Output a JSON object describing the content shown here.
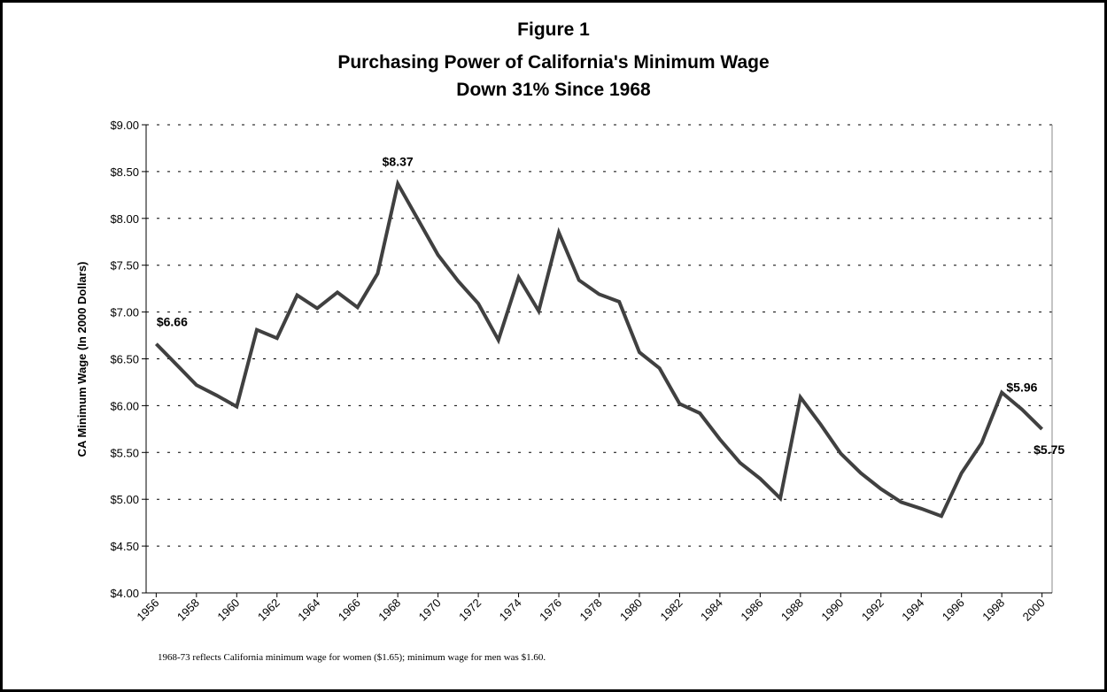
{
  "chart_data": {
    "type": "line",
    "titles": [
      "Figure 1",
      "Purchasing Power of California's Minimum Wage",
      "Down 31% Since 1968"
    ],
    "y_label": "CA Minimum Wage (In 2000 Dollars)",
    "note": "1968-73 reflects California minimum wage for women ($1.65); minimum wage for men was $1.60.",
    "x": [
      1956,
      1957,
      1958,
      1959,
      1960,
      1961,
      1962,
      1963,
      1964,
      1965,
      1966,
      1967,
      1968,
      1969,
      1970,
      1971,
      1972,
      1973,
      1974,
      1975,
      1976,
      1977,
      1978,
      1979,
      1980,
      1981,
      1982,
      1983,
      1984,
      1985,
      1986,
      1987,
      1988,
      1989,
      1990,
      1991,
      1992,
      1993,
      1994,
      1995,
      1996,
      1997,
      1998,
      1999,
      2000
    ],
    "values": [
      6.66,
      6.44,
      6.22,
      6.11,
      5.99,
      6.81,
      6.72,
      7.18,
      7.04,
      7.21,
      7.05,
      7.41,
      8.37,
      7.99,
      7.61,
      7.33,
      7.09,
      6.7,
      7.37,
      7.01,
      7.85,
      7.34,
      7.19,
      7.11,
      6.57,
      6.4,
      6.02,
      5.92,
      5.64,
      5.39,
      5.22,
      5.01,
      6.09,
      5.8,
      5.49,
      5.28,
      5.11,
      4.97,
      4.9,
      4.82,
      5.28,
      5.6,
      6.14,
      5.96,
      5.75
    ],
    "value_labels": [
      "$6.66",
      null,
      null,
      null,
      null,
      null,
      null,
      null,
      null,
      null,
      null,
      null,
      "$8.37",
      null,
      null,
      null,
      null,
      null,
      null,
      null,
      null,
      null,
      null,
      null,
      null,
      null,
      null,
      null,
      null,
      null,
      null,
      null,
      null,
      null,
      null,
      null,
      null,
      null,
      null,
      null,
      null,
      null,
      null,
      "$5.96",
      "$5.75"
    ],
    "color": "#404040",
    "xlim": [
      1955.5,
      2000.5
    ],
    "xticks": [
      1956,
      1958,
      1960,
      1962,
      1964,
      1966,
      1968,
      1970,
      1972,
      1974,
      1976,
      1978,
      1980,
      1982,
      1984,
      1986,
      1988,
      1990,
      1992,
      1994,
      1996,
      1998,
      2000
    ],
    "ylim": [
      4,
      9
    ],
    "yticks": [
      {
        "value": 4,
        "label": "$4.00"
      },
      {
        "value": 4.5,
        "label": "$4.50"
      },
      {
        "value": 5,
        "label": "$5.00"
      },
      {
        "value": 5.5,
        "label": "$5.50"
      },
      {
        "value": 6,
        "label": "$6.00"
      },
      {
        "value": 6.5,
        "label": "$6.50"
      },
      {
        "value": 7,
        "label": "$7.00"
      },
      {
        "value": 7.5,
        "label": "$7.50"
      },
      {
        "value": 8,
        "label": "$8.00"
      },
      {
        "value": 8.5,
        "label": "$8.50"
      },
      {
        "value": 9,
        "label": "$9.00"
      }
    ],
    "grid": true
  }
}
